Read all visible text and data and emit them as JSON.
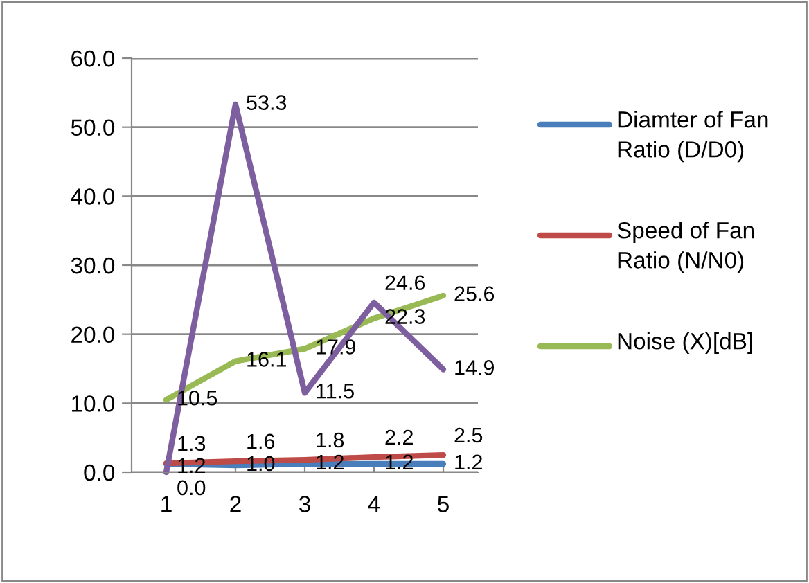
{
  "chart_data": {
    "type": "line",
    "categories": [
      "1",
      "2",
      "3",
      "4",
      "5"
    ],
    "series": [
      {
        "name": "Diamter of Fan Ratio (D/D0)",
        "color": "#4a7ebb",
        "values": [
          1.2,
          1.0,
          1.2,
          1.2,
          1.2
        ],
        "value_labels": [
          "1.2",
          "1.0",
          "1.2",
          "1.2",
          "1.2"
        ]
      },
      {
        "name": "Speed of Fan Ratio (N/N0)",
        "color": "#be4b48",
        "values": [
          1.3,
          1.6,
          1.8,
          2.2,
          2.5
        ],
        "value_labels": [
          "1.3",
          "1.6",
          "1.8",
          "2.2",
          "2.5"
        ]
      },
      {
        "name": "Noise (X)[dB]",
        "color": "#98b954",
        "values": [
          10.5,
          16.1,
          17.9,
          22.3,
          25.6
        ],
        "value_labels": [
          "10.5",
          "16.1",
          "17.9",
          "22.3",
          "25.6"
        ]
      },
      {
        "color": "#7d5fa0",
        "values": [
          0.0,
          53.3,
          11.5,
          24.6,
          14.9
        ],
        "value_labels": [
          "0.0",
          "53.3",
          "11.5",
          "24.6",
          "14.9"
        ]
      }
    ],
    "ylim": [
      0,
      60
    ],
    "yticks": [
      {
        "value": 0,
        "label": "0.0"
      },
      {
        "value": 10,
        "label": "10.0"
      },
      {
        "value": 20,
        "label": "20.0"
      },
      {
        "value": 30,
        "label": "30.0"
      },
      {
        "value": 40,
        "label": "40.0"
      },
      {
        "value": 50,
        "label": "50.0"
      },
      {
        "value": 60,
        "label": "60.0"
      }
    ],
    "grid": "y",
    "legend": "right",
    "marker": "none",
    "line_style": "solid"
  }
}
